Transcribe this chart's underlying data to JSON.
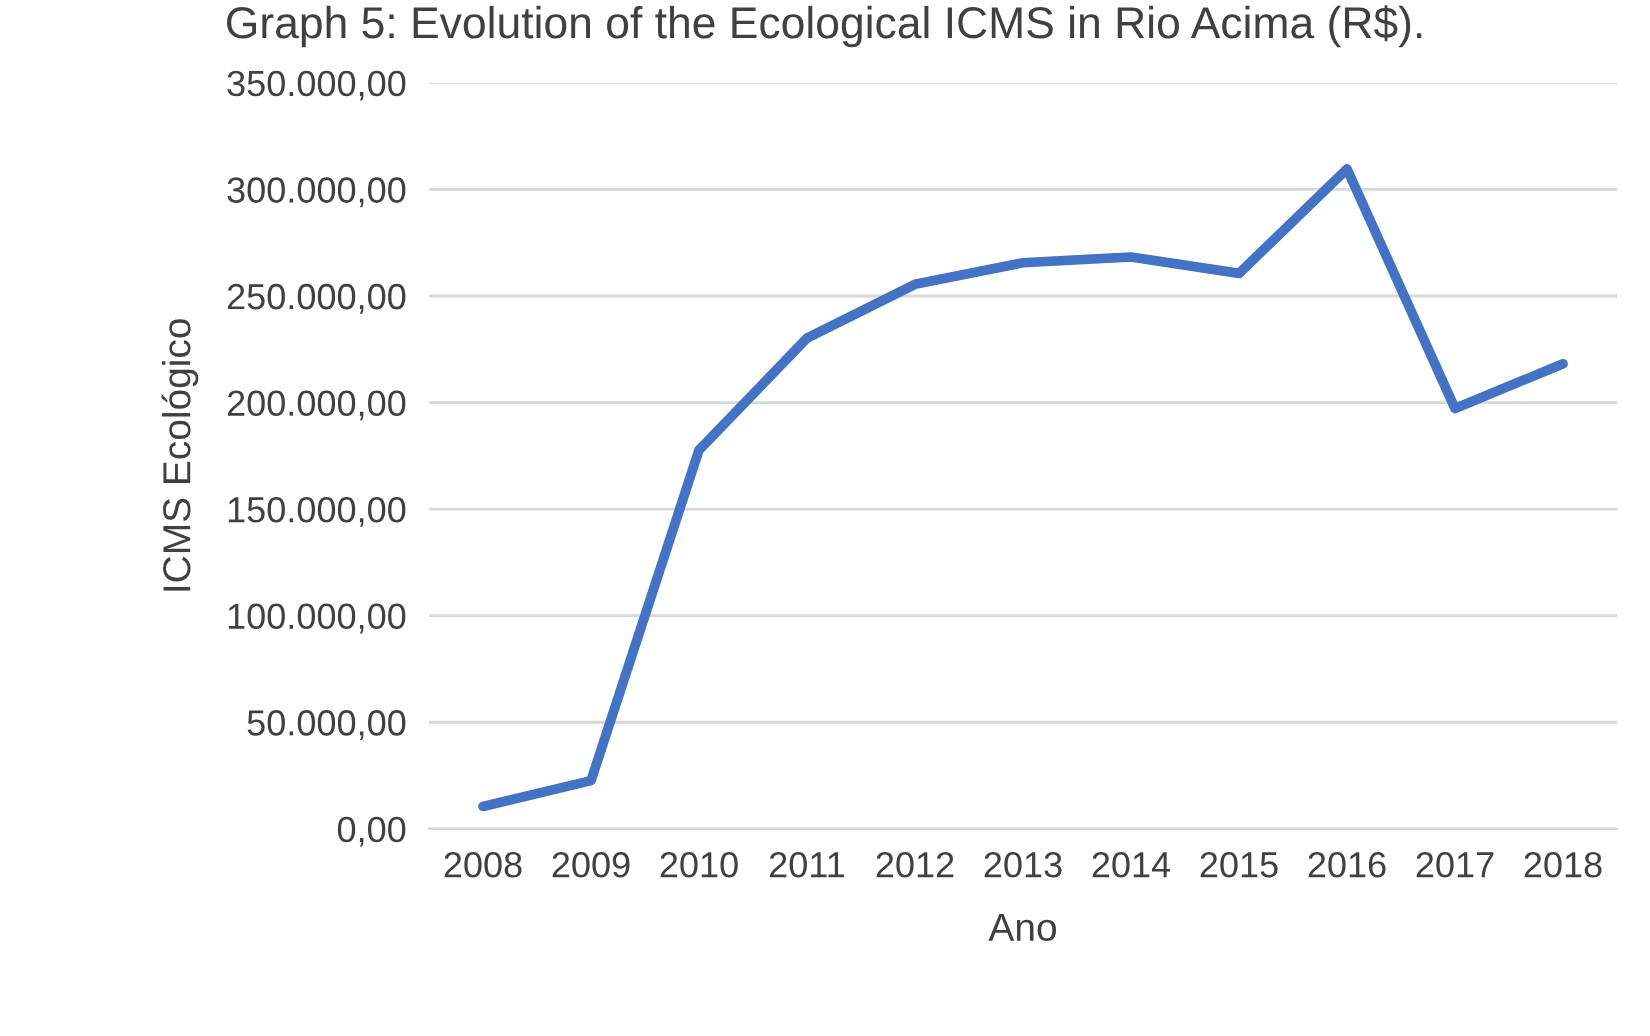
{
  "chart_data": {
    "type": "line",
    "title": "Graph 5: Evolution of the Ecological ICMS in Rio Acima (R$).",
    "xlabel": "Ano",
    "ylabel": "ICMS Ecológico",
    "categories": [
      "2008",
      "2009",
      "2010",
      "2011",
      "2012",
      "2013",
      "2014",
      "2015",
      "2016",
      "2017",
      "2018"
    ],
    "series": [
      {
        "color": "#4472c4",
        "values": [
          10500,
          22600,
          177700,
          230200,
          255500,
          265600,
          268300,
          260600,
          309600,
          197200,
          218200
        ]
      }
    ],
    "ylim": [
      0,
      350000
    ],
    "yticks": [
      {
        "value": 0,
        "label": "0,00"
      },
      {
        "value": 50000,
        "label": "50.000,00"
      },
      {
        "value": 100000,
        "label": "100.000,00"
      },
      {
        "value": 150000,
        "label": "150.000,00"
      },
      {
        "value": 200000,
        "label": "200.000,00"
      },
      {
        "value": 250000,
        "label": "250.000,00"
      },
      {
        "value": 300000,
        "label": "300.000,00"
      },
      {
        "value": 350000,
        "label": "350.000,00"
      }
    ],
    "grid": "y",
    "legend": false,
    "marker": "none",
    "line_style": "solid"
  }
}
